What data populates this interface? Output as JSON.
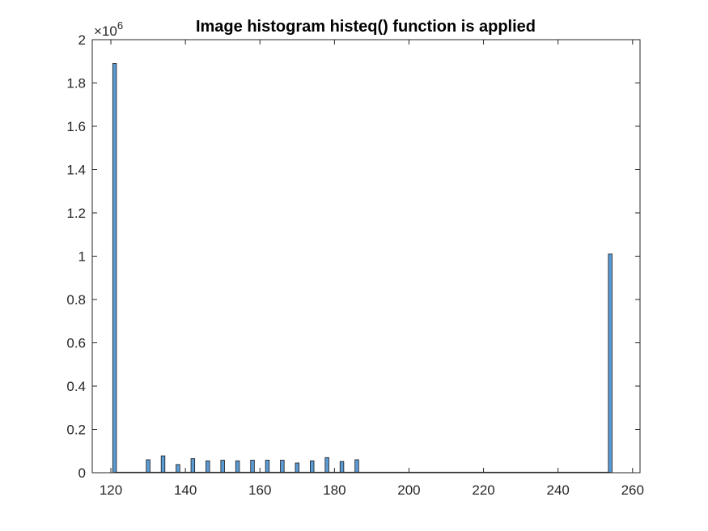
{
  "chart_data": {
    "type": "bar",
    "title": "Image histogram histeq() function is applied",
    "xlabel": "",
    "ylabel": "",
    "xlim": [
      115,
      262
    ],
    "ylim": [
      0,
      2000000
    ],
    "x_ticks": [
      120,
      140,
      160,
      180,
      200,
      220,
      240,
      260
    ],
    "y_ticks": [
      0,
      200000,
      400000,
      600000,
      800000,
      1000000,
      1200000,
      1400000,
      1600000,
      1800000,
      2000000
    ],
    "y_tick_labels": [
      "0",
      "0.2",
      "0.4",
      "0.6",
      "0.8",
      "1",
      "1.2",
      "1.4",
      "1.6",
      "1.8",
      "2"
    ],
    "y_exponent_base": "×10",
    "y_exponent_power": "6",
    "bar_width": 1,
    "bar_color": "#5B9BD5",
    "edge_color": "#1a1a1a",
    "grid": false,
    "x": [
      121,
      130,
      134,
      138,
      142,
      146,
      150,
      154,
      158,
      162,
      166,
      170,
      174,
      178,
      182,
      186,
      254
    ],
    "values": [
      1890000,
      60000,
      78000,
      38000,
      65000,
      55000,
      58000,
      55000,
      58000,
      58000,
      58000,
      45000,
      55000,
      70000,
      52000,
      60000,
      1010000
    ]
  }
}
